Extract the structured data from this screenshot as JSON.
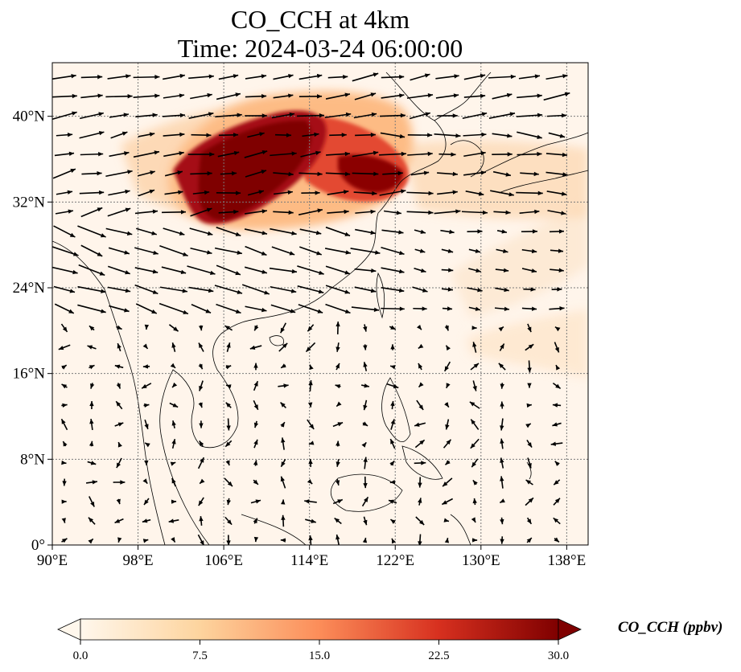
{
  "title": {
    "line1": "CO_CCH at 4km",
    "line2": "Time: 2024-03-24 06:00:00"
  },
  "map": {
    "lon_range": [
      90,
      140
    ],
    "lat_range": [
      0,
      45
    ],
    "x_ticks": [
      {
        "value": 90,
        "label": "90°E"
      },
      {
        "value": 98,
        "label": "98°E"
      },
      {
        "value": 106,
        "label": "106°E"
      },
      {
        "value": 114,
        "label": "114°E"
      },
      {
        "value": 122,
        "label": "122°E"
      },
      {
        "value": 130,
        "label": "130°E"
      },
      {
        "value": 138,
        "label": "138°E"
      }
    ],
    "y_ticks": [
      {
        "value": 0,
        "label": "0°"
      },
      {
        "value": 8,
        "label": "8°N"
      },
      {
        "value": 16,
        "label": "16°N"
      },
      {
        "value": 24,
        "label": "24°N"
      },
      {
        "value": 32,
        "label": "32°N"
      },
      {
        "value": 40,
        "label": "40°N"
      }
    ],
    "gridlines": true,
    "background_color": "#fff5eb",
    "coastline_color": "#000000",
    "wind_vectors": "arrows showing 4 km wind field"
  },
  "colorbar": {
    "label": "CO_CCH (ppbv)",
    "min": 0.0,
    "max": 30.0,
    "extend": "both",
    "colormap": "OrRd",
    "ticks": [
      {
        "value": 0.0,
        "label": "0.0"
      },
      {
        "value": 7.5,
        "label": "7.5"
      },
      {
        "value": 15.0,
        "label": "15.0"
      },
      {
        "value": 22.5,
        "label": "22.5"
      },
      {
        "value": 30.0,
        "label": "30.0"
      }
    ],
    "colors": [
      "#fff7ec",
      "#fdd49e",
      "#fc8d59",
      "#d7301f",
      "#7f0000"
    ]
  }
}
